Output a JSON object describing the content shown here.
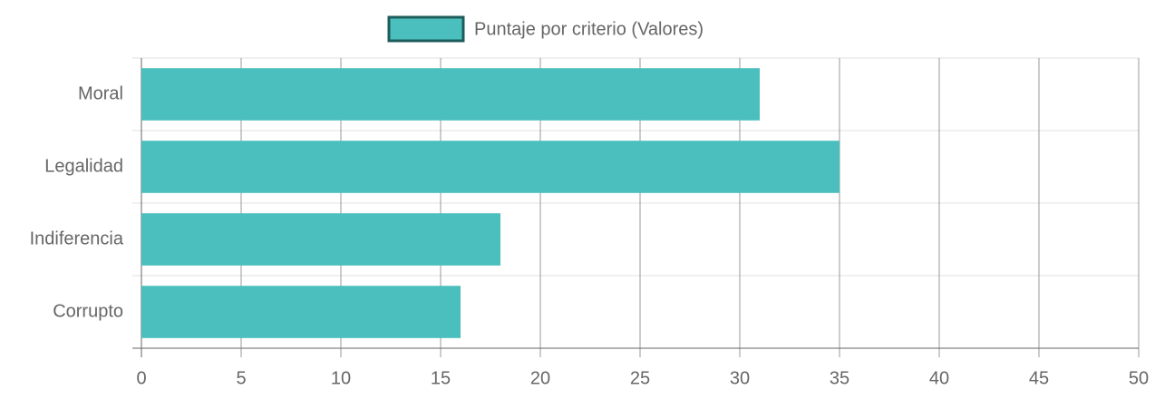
{
  "chart_data": {
    "type": "bar",
    "orientation": "horizontal",
    "categories": [
      "Moral",
      "Legalidad",
      "Indiferencia",
      "Corrupto"
    ],
    "series": [
      {
        "name": "Puntaje por criterio (Valores)",
        "color": "#4bbfbd",
        "values": [
          31,
          35,
          18,
          16
        ]
      }
    ],
    "xlim": [
      0,
      50
    ],
    "xticks": [
      0,
      5,
      10,
      15,
      20,
      25,
      30,
      35,
      40,
      45,
      50
    ],
    "grid": true,
    "legend": "top"
  }
}
